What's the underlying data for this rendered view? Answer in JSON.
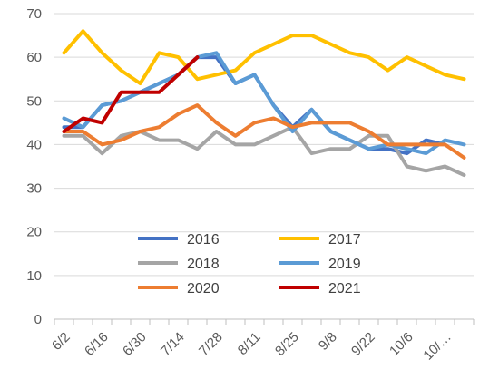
{
  "chart_data": {
    "type": "line",
    "title": "",
    "xlabel": "",
    "ylabel": "",
    "ylim": [
      0,
      70
    ],
    "yticks": [
      0,
      10,
      20,
      30,
      40,
      50,
      60,
      70
    ],
    "grid": true,
    "legend_position": "center",
    "x_tick_labels": [
      "6/2",
      "6/16",
      "6/30",
      "7/14",
      "7/28",
      "8/11",
      "8/25",
      "9/8",
      "9/22",
      "10/6",
      "10/…"
    ],
    "series": [
      {
        "name": "2016",
        "color": "#4472c4",
        "values": [
          44,
          44,
          49,
          50,
          52,
          54,
          56,
          60,
          60,
          54,
          56,
          49,
          44,
          48,
          43,
          41,
          39,
          39,
          38,
          41,
          40
        ]
      },
      {
        "name": "2017",
        "color": "#ffc000",
        "values": [
          61,
          66,
          61,
          57,
          54,
          61,
          60,
          55,
          56,
          57,
          61,
          63,
          65,
          65,
          63,
          61,
          60,
          57,
          60,
          58,
          56,
          55
        ]
      },
      {
        "name": "2018",
        "color": "#a5a5a5",
        "values": [
          42,
          42,
          38,
          42,
          43,
          41,
          41,
          39,
          43,
          40,
          40,
          42,
          44,
          38,
          39,
          39,
          42,
          42,
          35,
          34,
          35,
          33
        ]
      },
      {
        "name": "2019",
        "color": "#5b9bd5",
        "values": [
          46,
          44,
          49,
          50,
          52,
          54,
          56,
          60,
          61,
          54,
          56,
          49,
          43,
          48,
          43,
          41,
          39,
          40,
          39,
          38,
          41,
          40
        ]
      },
      {
        "name": "2020",
        "color": "#ed7d31",
        "values": [
          43,
          43,
          40,
          41,
          43,
          44,
          47,
          49,
          45,
          42,
          45,
          46,
          44,
          45,
          45,
          45,
          43,
          40,
          40,
          40,
          40,
          37
        ]
      },
      {
        "name": "2021",
        "color": "#c00000",
        "values": [
          43,
          46,
          45,
          52,
          52,
          52,
          56,
          60
        ]
      }
    ]
  }
}
